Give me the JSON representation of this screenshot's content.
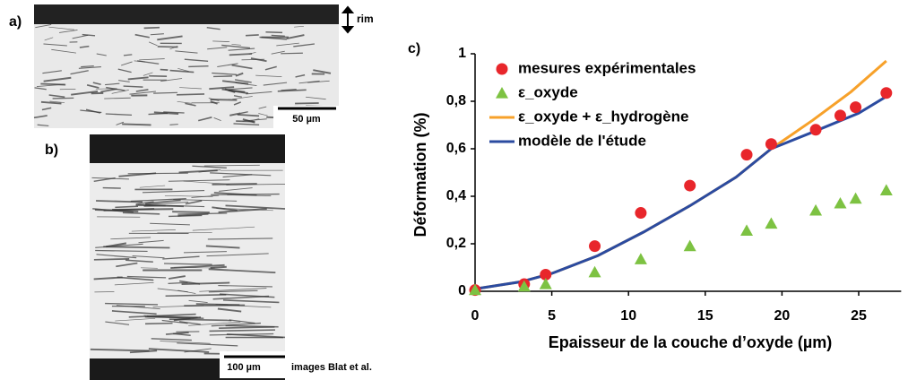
{
  "panels": {
    "a": {
      "label": "a)",
      "annotation": "rim",
      "scale": "50 µm"
    },
    "b": {
      "label": "b)",
      "scale": "100 µm",
      "credit": "images Blat et al."
    }
  },
  "chart_data": {
    "type": "scatter",
    "label": "c)",
    "x_label": "Epaisseur de la couche d’oxyde (µm)",
    "y_label": "Déformation (%)",
    "xlim": [
      0,
      28
    ],
    "ylim": [
      0,
      1
    ],
    "xticks": [
      0,
      5,
      10,
      15,
      20,
      25
    ],
    "yticks": [
      0,
      {
        "value": 0.2,
        "label": "0,2"
      },
      {
        "value": 0.4,
        "label": "0,4"
      },
      {
        "value": 0.6,
        "label": "0,6"
      },
      {
        "value": 0.8,
        "label": "0,8"
      },
      1
    ],
    "legend": "upper-left",
    "series": [
      {
        "name": "mesures expérimentales",
        "color": "#e8262b",
        "marker": "circle",
        "x": [
          0,
          3.2,
          4.6,
          7.8,
          10.8,
          14,
          17.7,
          19.3,
          22.2,
          23.8,
          24.8,
          26.8
        ],
        "values": [
          0.005,
          0.03,
          0.07,
          0.19,
          0.33,
          0.445,
          0.575,
          0.62,
          0.68,
          0.74,
          0.775,
          0.835
        ]
      },
      {
        "name": "ε_oxyde",
        "color": "#7dc242",
        "marker": "triangle",
        "x": [
          0,
          3.2,
          4.6,
          7.8,
          10.8,
          14,
          17.7,
          19.3,
          22.2,
          23.8,
          24.8,
          26.8
        ],
        "values": [
          0.005,
          0.02,
          0.03,
          0.08,
          0.135,
          0.19,
          0.255,
          0.285,
          0.34,
          0.37,
          0.39,
          0.425
        ]
      },
      {
        "name": "ε_oxyde + ε_hydrogène",
        "color": "#f7a12a",
        "marker": "line",
        "x": [
          0,
          3,
          5,
          8,
          11,
          14,
          17,
          19.3,
          22,
          24.5,
          26.8
        ],
        "values": [
          0.01,
          0.04,
          0.075,
          0.15,
          0.25,
          0.36,
          0.48,
          0.6,
          0.72,
          0.84,
          0.97
        ]
      },
      {
        "name": "modèle de l'étude",
        "color": "#2b4ba0",
        "marker": "line",
        "x": [
          0,
          3,
          5,
          8,
          11,
          14,
          17,
          19.3,
          22,
          25,
          26.8
        ],
        "values": [
          0.01,
          0.04,
          0.075,
          0.15,
          0.25,
          0.36,
          0.48,
          0.6,
          0.67,
          0.75,
          0.82
        ]
      }
    ]
  }
}
